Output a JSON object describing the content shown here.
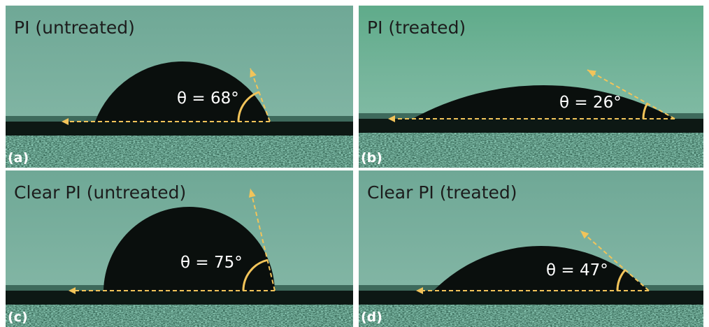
{
  "panels": [
    {
      "title": "PI (untreated)",
      "angle_label": "θ = 68°",
      "tag": "(a)"
    },
    {
      "title": "PI (treated)",
      "angle_label": "θ = 26°",
      "tag": "(b)"
    },
    {
      "title": "Clear PI (untreated)",
      "angle_label": "θ = 75°",
      "tag": "(c)"
    },
    {
      "title": "Clear PI (treated)",
      "angle_label": "θ = 47°",
      "tag": "(d)"
    }
  ]
}
